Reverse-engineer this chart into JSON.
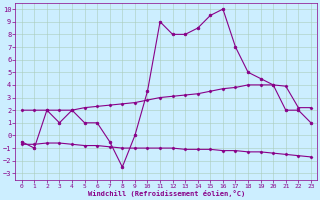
{
  "xlabel": "Windchill (Refroidissement éolien,°C)",
  "background_color": "#cceeff",
  "line_color": "#880088",
  "grid_color": "#aaccbb",
  "xlim": [
    -0.5,
    23.5
  ],
  "ylim": [
    -3.5,
    10.5
  ],
  "xticks": [
    0,
    1,
    2,
    3,
    4,
    5,
    6,
    7,
    8,
    9,
    10,
    11,
    12,
    13,
    14,
    15,
    16,
    17,
    18,
    19,
    20,
    21,
    22,
    23
  ],
  "yticks": [
    -3,
    -2,
    -1,
    0,
    1,
    2,
    3,
    4,
    5,
    6,
    7,
    8,
    9,
    10
  ],
  "curve_main_x": [
    0,
    1,
    2,
    3,
    4,
    5,
    6,
    7,
    8,
    9,
    10,
    11,
    12,
    13,
    14,
    15,
    16,
    17,
    18,
    19,
    20,
    21,
    22,
    23
  ],
  "curve_main_y": [
    -0.5,
    -1,
    2,
    1,
    2,
    1,
    1,
    -0.5,
    -2.5,
    0,
    3.5,
    9,
    8,
    8,
    8.5,
    9.5,
    10,
    7,
    5,
    4.5,
    4,
    2,
    2,
    1
  ],
  "curve_upper_x": [
    0,
    1,
    2,
    3,
    4,
    5,
    6,
    7,
    8,
    9,
    10,
    11,
    12,
    13,
    14,
    15,
    16,
    17,
    18,
    19,
    20,
    21,
    22,
    23
  ],
  "curve_upper_y": [
    2,
    2,
    2,
    2,
    2,
    2.2,
    2.3,
    2.4,
    2.5,
    2.6,
    2.8,
    3.0,
    3.1,
    3.2,
    3.3,
    3.5,
    3.7,
    3.8,
    4.0,
    4.0,
    4.0,
    3.9,
    2.2,
    2.2
  ],
  "curve_lower_x": [
    0,
    1,
    2,
    3,
    4,
    5,
    6,
    7,
    8,
    9,
    10,
    11,
    12,
    13,
    14,
    15,
    16,
    17,
    18,
    19,
    20,
    21,
    22,
    23
  ],
  "curve_lower_y": [
    -0.7,
    -0.7,
    -0.6,
    -0.6,
    -0.7,
    -0.8,
    -0.8,
    -0.9,
    -1.0,
    -1.0,
    -1.0,
    -1.0,
    -1.0,
    -1.1,
    -1.1,
    -1.1,
    -1.2,
    -1.2,
    -1.3,
    -1.3,
    -1.4,
    -1.5,
    -1.6,
    -1.7
  ]
}
